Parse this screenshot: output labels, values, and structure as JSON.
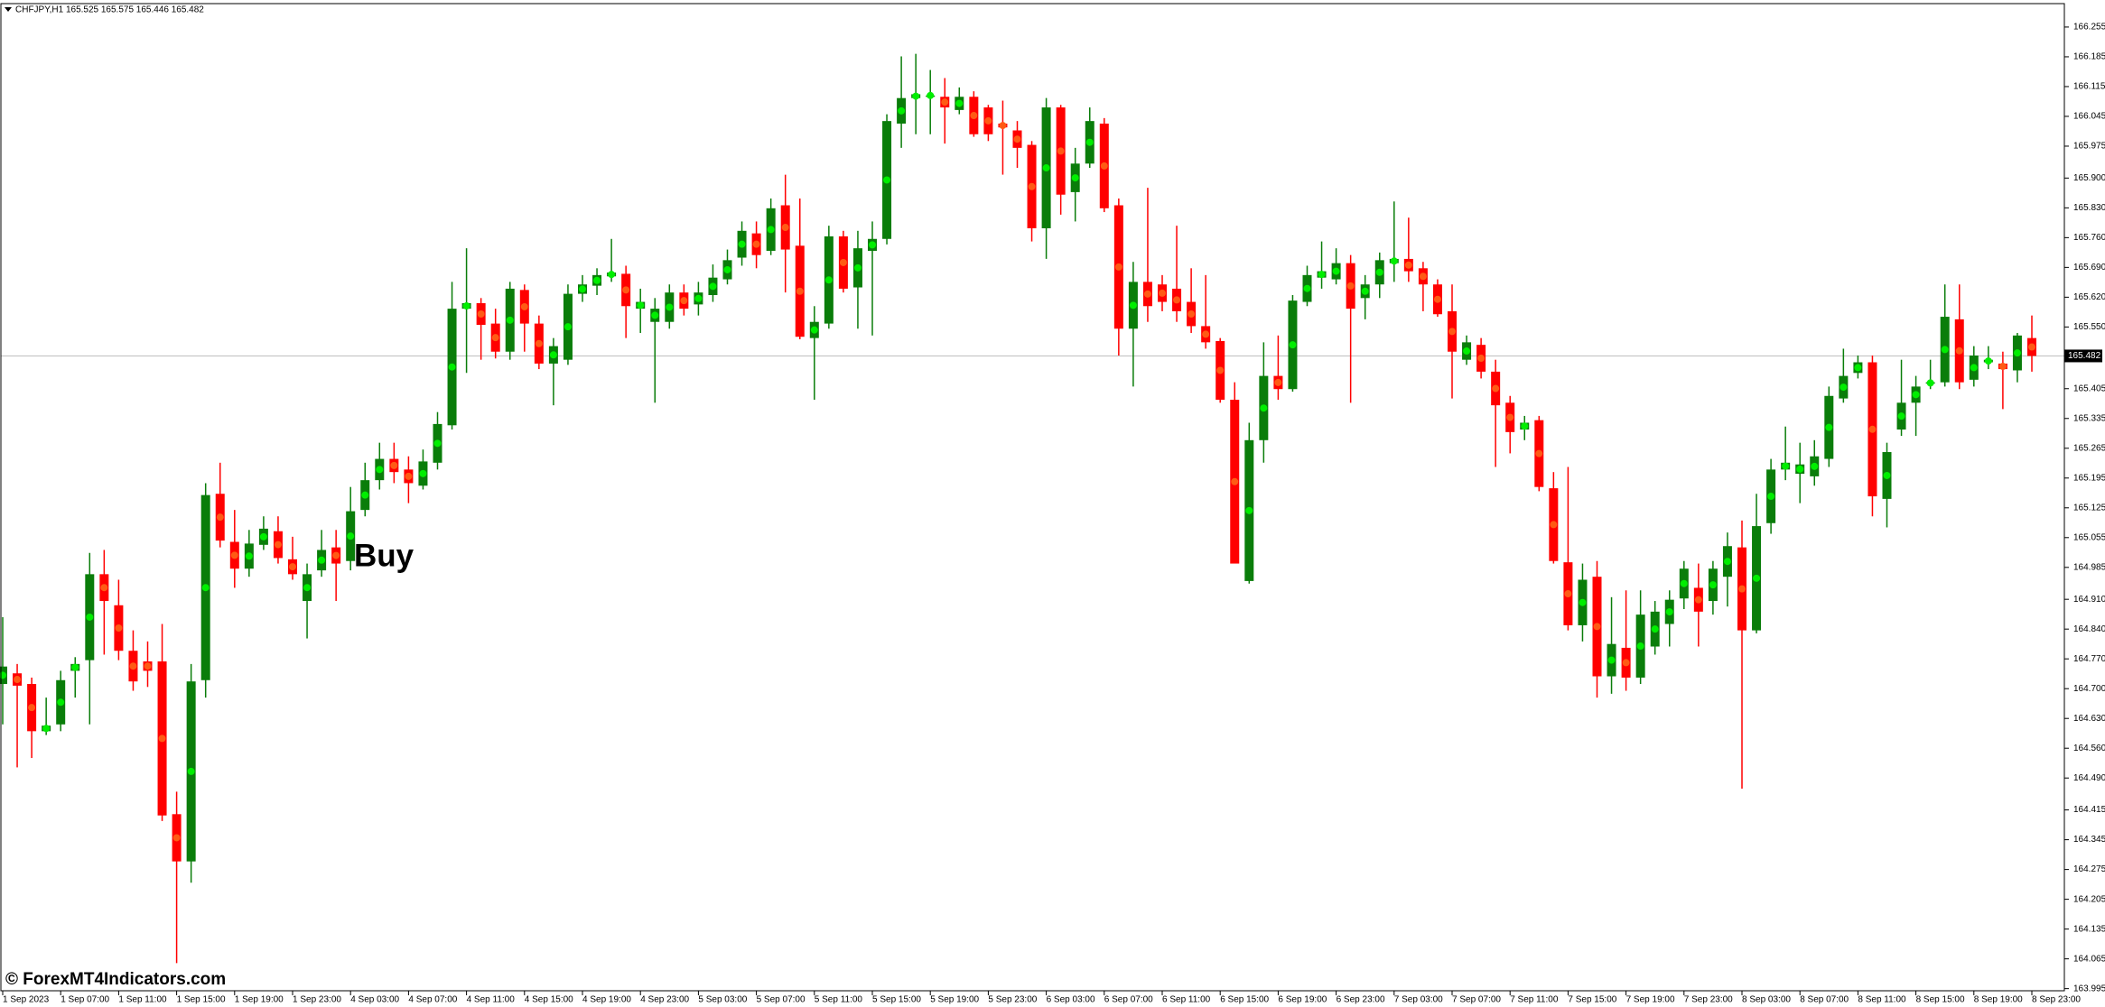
{
  "chart_data": {
    "type": "candlestick",
    "symbol_line": "CHFJPY,H1  165.525 165.575 165.446 165.482",
    "annotation": "Buy",
    "footer": "© ForexMT4Indicators.com",
    "up_color": "#0a7d0a",
    "down_color": "#ff0000",
    "signal_up_color": "#00ee00",
    "signal_down_color": "#ff5a14",
    "signal_markers": true,
    "current_price": 165.482,
    "ylim": [
      163.99,
      166.31
    ],
    "yticks": [
      166.255,
      166.185,
      166.115,
      166.045,
      165.975,
      {
        "value": 165.9,
        "label": "165.900"
      },
      {
        "value": 165.83,
        "label": "165.830"
      },
      {
        "value": 165.76,
        "label": "165.760"
      },
      {
        "value": 165.69,
        "label": "165.690"
      },
      {
        "value": 165.62,
        "label": "165.620"
      },
      {
        "value": 165.55,
        "label": "165.550"
      },
      165.405,
      165.335,
      165.265,
      165.195,
      165.125,
      165.055,
      164.985,
      {
        "value": 164.91,
        "label": "164.910"
      },
      {
        "value": 164.84,
        "label": "164.840"
      },
      {
        "value": 164.77,
        "label": "164.770"
      },
      {
        "value": 164.7,
        "label": "164.700"
      },
      {
        "value": 164.63,
        "label": "164.630"
      },
      {
        "value": 164.56,
        "label": "164.560"
      },
      {
        "value": 164.49,
        "label": "164.490"
      },
      164.415,
      164.345,
      164.275,
      164.205,
      164.135,
      164.065,
      163.995
    ],
    "categories": [
      "1 Sep 2023",
      null,
      null,
      null,
      "1 Sep 07:00",
      null,
      null,
      null,
      "1 Sep 11:00",
      null,
      null,
      null,
      "1 Sep 15:00",
      null,
      null,
      null,
      "1 Sep 19:00",
      null,
      null,
      null,
      "1 Sep 23:00",
      null,
      null,
      null,
      "4 Sep 03:00",
      null,
      null,
      null,
      "4 Sep 07:00",
      null,
      null,
      null,
      "4 Sep 11:00",
      null,
      null,
      null,
      "4 Sep 15:00",
      null,
      null,
      null,
      "4 Sep 19:00",
      null,
      null,
      null,
      "4 Sep 23:00",
      null,
      null,
      null,
      "5 Sep 03:00",
      null,
      null,
      null,
      "5 Sep 07:00",
      null,
      null,
      null,
      "5 Sep 11:00",
      null,
      null,
      null,
      "5 Sep 15:00",
      null,
      null,
      null,
      "5 Sep 19:00",
      null,
      null,
      null,
      "5 Sep 23:00",
      null,
      null,
      null,
      "6 Sep 03:00",
      null,
      null,
      null,
      "6 Sep 07:00",
      null,
      null,
      null,
      "6 Sep 11:00",
      null,
      null,
      null,
      "6 Sep 15:00",
      null,
      null,
      null,
      "6 Sep 19:00",
      null,
      null,
      null,
      "6 Sep 23:00",
      null,
      null,
      null,
      "7 Sep 03:00",
      null,
      null,
      null,
      "7 Sep 07:00",
      null,
      null,
      null,
      "7 Sep 11:00",
      null,
      null,
      null,
      "7 Sep 15:00",
      null,
      null,
      null,
      "7 Sep 19:00",
      null,
      null,
      null,
      "7 Sep 23:00",
      null,
      null,
      null,
      "8 Sep 03:00",
      null,
      null,
      null,
      "8 Sep 07:00",
      null,
      null,
      null,
      "8 Sep 11:00",
      null,
      null,
      null,
      "8 Sep 15:00",
      null,
      null,
      null,
      "8 Sep 19:00",
      null,
      null,
      null,
      "8 Sep 23:00"
    ],
    "open": [
      164.711,
      164.736,
      164.711,
      164.6,
      164.616,
      164.742,
      164.767,
      164.969,
      164.896,
      164.789,
      164.764,
      164.764,
      164.405,
      164.294,
      164.72,
      165.158,
      165.045,
      164.982,
      165.038,
      165.07,
      165.004,
      164.906,
      164.978,
      165.032,
      165.0,
      165.12,
      165.19,
      165.24,
      165.215,
      165.177,
      165.231,
      165.319,
      165.593,
      165.606,
      165.558,
      165.492,
      165.637,
      165.558,
      165.464,
      165.473,
      165.628,
      165.647,
      165.669,
      165.675,
      165.593,
      165.562,
      165.562,
      165.631,
      165.603,
      165.625,
      165.662,
      165.713,
      165.77,
      165.729,
      165.836,
      165.741,
      165.524,
      165.558,
      165.763,
      165.643,
      165.729,
      165.757,
      166.028,
      166.088,
      166.094,
      166.091,
      166.06,
      166.091,
      166.066,
      166.028,
      166.012,
      165.978,
      165.782,
      166.066,
      165.867,
      165.934,
      166.028,
      165.836,
      165.546,
      165.656,
      165.65,
      165.64,
      165.609,
      165.552,
      165.517,
      165.379,
      164.953,
      165.284,
      165.435,
      165.404,
      165.609,
      165.666,
      165.662,
      165.7,
      165.618,
      165.65,
      165.7,
      165.71,
      165.688,
      165.65,
      165.587,
      165.473,
      165.508,
      165.445,
      165.372,
      165.309,
      165.331,
      165.171,
      164.997,
      164.849,
      164.963,
      164.729,
      164.796,
      164.726,
      164.799,
      164.852,
      164.912,
      164.937,
      164.906,
      164.963,
      165.032,
      164.837,
      165.089,
      165.215,
      165.205,
      165.199,
      165.24,
      165.382,
      165.442,
      165.467,
      165.146,
      165.309,
      165.372,
      165.417,
      165.42,
      165.568,
      165.426,
      165.467,
      165.464,
      165.448,
      165.524
    ],
    "high": [
      164.868,
      164.758,
      164.726,
      164.679,
      164.742,
      164.774,
      165.019,
      165.026,
      164.956,
      164.837,
      164.811,
      164.852,
      164.458,
      164.758,
      165.183,
      165.231,
      165.12,
      165.073,
      165.105,
      165.105,
      165.057,
      164.994,
      165.073,
      165.073,
      165.174,
      165.231,
      165.278,
      165.278,
      165.246,
      165.262,
      165.35,
      165.656,
      165.735,
      165.618,
      165.593,
      165.656,
      165.65,
      165.577,
      165.524,
      165.65,
      165.672,
      165.688,
      165.757,
      165.694,
      165.64,
      165.618,
      165.65,
      165.65,
      165.656,
      165.697,
      165.732,
      165.798,
      165.798,
      165.852,
      165.908,
      165.852,
      165.599,
      165.788,
      165.776,
      165.776,
      165.798,
      166.05,
      166.186,
      166.192,
      166.154,
      166.135,
      166.113,
      166.104,
      166.072,
      166.082,
      166.034,
      165.987,
      166.088,
      166.072,
      165.971,
      166.066,
      166.041,
      165.852,
      165.703,
      165.877,
      165.672,
      165.788,
      165.688,
      165.672,
      165.524,
      165.42,
      165.325,
      165.514,
      165.53,
      165.625,
      165.694,
      165.751,
      165.735,
      165.719,
      165.672,
      165.725,
      165.845,
      165.807,
      165.703,
      165.662,
      165.65,
      165.53,
      165.524,
      165.473,
      165.388,
      165.341,
      165.341,
      165.209,
      165.221,
      164.994,
      165.0,
      164.915,
      164.931,
      164.931,
      164.906,
      164.931,
      165.0,
      164.994,
      165.0,
      165.067,
      165.095,
      165.158,
      165.24,
      165.316,
      165.278,
      165.284,
      165.41,
      165.499,
      165.483,
      165.483,
      165.278,
      165.473,
      165.435,
      165.473,
      165.65,
      165.65,
      165.505,
      165.505,
      165.492,
      165.536,
      165.577
    ],
    "low": [
      164.616,
      164.515,
      164.537,
      164.591,
      164.6,
      164.679,
      164.616,
      164.78,
      164.767,
      164.695,
      164.704,
      164.389,
      164.055,
      164.244,
      164.679,
      165.032,
      164.937,
      164.963,
      165.026,
      164.994,
      164.956,
      164.818,
      164.963,
      164.906,
      164.978,
      165.105,
      165.168,
      165.183,
      165.136,
      165.168,
      165.215,
      165.309,
      165.442,
      165.473,
      165.476,
      165.473,
      165.492,
      165.451,
      165.366,
      165.461,
      165.609,
      165.625,
      165.656,
      165.524,
      165.536,
      165.372,
      165.546,
      165.577,
      165.577,
      165.609,
      165.65,
      165.694,
      165.688,
      165.719,
      165.631,
      165.521,
      165.379,
      165.546,
      165.631,
      165.546,
      165.53,
      165.744,
      165.971,
      166.003,
      166.003,
      165.981,
      166.05,
      165.997,
      165.987,
      165.908,
      165.924,
      165.751,
      165.71,
      165.814,
      165.798,
      165.924,
      165.82,
      165.483,
      165.41,
      165.562,
      165.587,
      165.562,
      165.536,
      165.499,
      165.372,
      164.994,
      164.947,
      165.231,
      165.379,
      165.398,
      165.599,
      165.64,
      165.65,
      165.372,
      165.568,
      165.618,
      165.656,
      165.656,
      165.587,
      165.574,
      165.382,
      165.461,
      165.429,
      165.221,
      165.253,
      165.284,
      165.164,
      164.994,
      164.837,
      164.811,
      164.679,
      164.688,
      164.695,
      164.711,
      164.78,
      164.799,
      164.887,
      164.799,
      164.874,
      164.893,
      164.465,
      164.83,
      165.064,
      165.19,
      165.136,
      165.177,
      165.221,
      165.372,
      165.429,
      165.105,
      165.079,
      165.294,
      165.294,
      165.404,
      165.41,
      165.404,
      165.41,
      165.451,
      165.357,
      165.42,
      165.445
    ],
    "close": [
      164.752,
      164.707,
      164.6,
      164.613,
      164.72,
      164.758,
      164.969,
      164.906,
      164.789,
      164.717,
      164.742,
      164.402,
      164.294,
      164.717,
      165.155,
      165.048,
      164.982,
      165.041,
      165.076,
      165.007,
      164.969,
      164.969,
      165.026,
      164.994,
      165.117,
      165.19,
      165.24,
      165.209,
      165.183,
      165.234,
      165.322,
      165.593,
      165.606,
      165.555,
      165.492,
      165.64,
      165.558,
      165.464,
      165.505,
      165.628,
      165.65,
      165.672,
      165.678,
      165.599,
      165.609,
      165.593,
      165.631,
      165.593,
      165.631,
      165.666,
      165.707,
      165.776,
      165.719,
      165.829,
      165.732,
      165.527,
      165.562,
      165.763,
      165.64,
      165.735,
      165.757,
      166.034,
      166.088,
      166.097,
      166.094,
      166.066,
      166.091,
      166.003,
      166.003,
      166.019,
      165.971,
      165.782,
      166.066,
      165.861,
      165.934,
      166.034,
      165.829,
      165.546,
      165.656,
      165.599,
      165.609,
      165.587,
      165.552,
      165.514,
      165.379,
      164.994,
      165.284,
      165.435,
      165.404,
      165.612,
      165.672,
      165.681,
      165.7,
      165.593,
      165.65,
      165.707,
      165.71,
      165.681,
      165.65,
      165.58,
      165.492,
      165.514,
      165.445,
      165.366,
      165.303,
      165.325,
      165.174,
      165.0,
      164.849,
      164.956,
      164.729,
      164.805,
      164.726,
      164.874,
      164.881,
      164.909,
      164.982,
      164.881,
      164.982,
      165.035,
      164.837,
      165.082,
      165.215,
      165.231,
      165.227,
      165.246,
      165.388,
      165.435,
      165.467,
      165.152,
      165.256,
      165.372,
      165.41,
      165.42,
      165.574,
      165.42,
      165.483,
      165.473,
      165.451,
      165.53,
      165.482
    ]
  }
}
